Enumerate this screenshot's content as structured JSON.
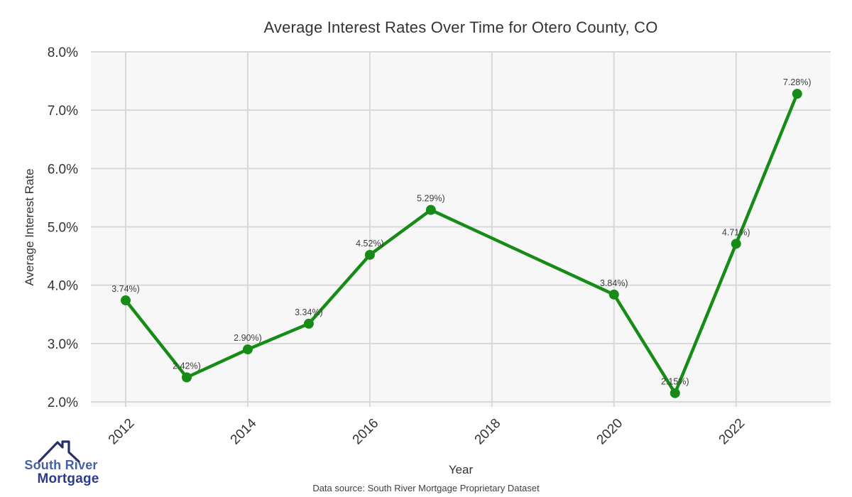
{
  "page": {
    "background": "#ffffff"
  },
  "chart_data": {
    "type": "line",
    "title": "Average Interest Rates Over Time for Otero County, CO",
    "xlabel": "Year",
    "ylabel": "Average Interest Rate",
    "caption": "Data source: South River Mortgage Proprietary Dataset",
    "x": [
      2012,
      2013,
      2014,
      2015,
      2016,
      2017,
      2020,
      2021,
      2022,
      2023
    ],
    "values": [
      3.74,
      2.42,
      2.9,
      3.34,
      4.52,
      5.29,
      3.84,
      2.15,
      4.71,
      7.28
    ],
    "point_labels": [
      "3.74%)",
      "2.42%)",
      "2.90%)",
      "3.34%)",
      "4.52%)",
      "5.29%)",
      "3.84%)",
      "2.15%)",
      "4.71%)",
      "7.28%)"
    ],
    "x_ticks": [
      {
        "value": 2012,
        "label": "2012"
      },
      {
        "value": 2014,
        "label": "2014"
      },
      {
        "value": 2016,
        "label": "2016"
      },
      {
        "value": 2018,
        "label": "2018"
      },
      {
        "value": 2020,
        "label": "2020"
      },
      {
        "value": 2022,
        "label": "2022"
      }
    ],
    "y_ticks": [
      {
        "value": 2,
        "label": "2.0%"
      },
      {
        "value": 3,
        "label": "3.0%"
      },
      {
        "value": 4,
        "label": "4.0%"
      },
      {
        "value": 5,
        "label": "5.0%"
      },
      {
        "value": 6,
        "label": "6.0%"
      },
      {
        "value": 7,
        "label": "7.0%"
      },
      {
        "value": 8,
        "label": "8.0%"
      }
    ],
    "xlim": [
      2011.43,
      2023.55
    ],
    "ylim": [
      1.915,
      8.0
    ],
    "grid": true,
    "legend": "none",
    "line_color": "#168c16",
    "marker_color": "#168c16",
    "plot_bg": "#f7f7f7",
    "grid_color": "#d8d8d8",
    "tick_color": "#333333",
    "point_label_color": "#3d3d3d"
  },
  "logo": {
    "line1": "South River",
    "line2": "Mortgage",
    "line1_color": "#4560aa",
    "line2_color": "#2e3b8c",
    "roof_color": "#262f66"
  }
}
